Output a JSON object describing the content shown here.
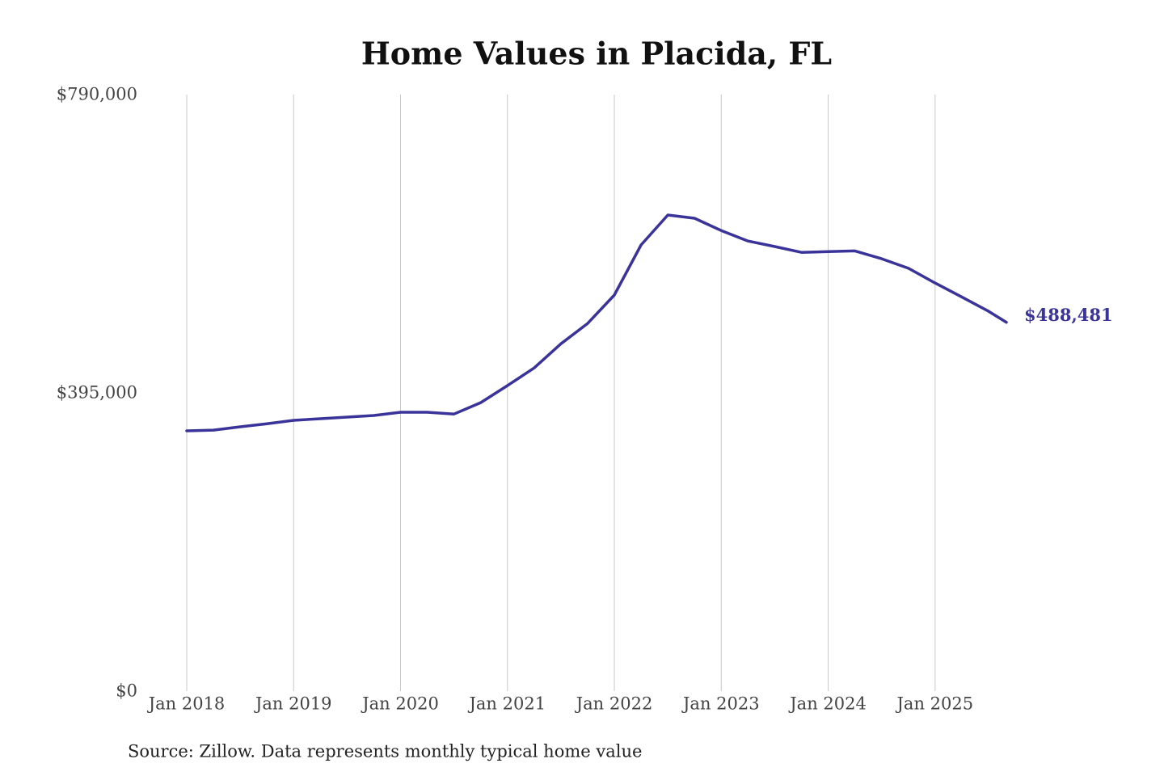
{
  "chart_data": {
    "type": "line",
    "title": "Home Values in Placida, FL",
    "source": "Source: Zillow. Data represents monthly typical home value",
    "x": [
      "2018-01",
      "2018-04",
      "2018-07",
      "2018-10",
      "2019-01",
      "2019-04",
      "2019-07",
      "2019-10",
      "2020-01",
      "2020-04",
      "2020-07",
      "2020-10",
      "2021-01",
      "2021-04",
      "2021-07",
      "2021-10",
      "2022-01",
      "2022-04",
      "2022-07",
      "2022-10",
      "2023-01",
      "2023-04",
      "2023-07",
      "2023-10",
      "2024-01",
      "2024-04",
      "2024-07",
      "2024-10",
      "2025-01",
      "2025-04",
      "2025-07",
      "2025-09"
    ],
    "series": [
      {
        "name": "Placida, FL",
        "color": "#3a3399",
        "values": [
          344700,
          345700,
          350000,
          354000,
          358600,
          360700,
          362900,
          365000,
          369300,
          369300,
          367000,
          382000,
          404600,
          428000,
          460000,
          487000,
          524500,
          590900,
          630500,
          626200,
          610000,
          596000,
          588700,
          581000,
          582000,
          583000,
          572600,
          560000,
          540500,
          522000,
          503000,
          488481
        ],
        "value_labels": [
          null,
          null,
          null,
          null,
          null,
          null,
          null,
          null,
          null,
          null,
          null,
          null,
          null,
          null,
          null,
          null,
          null,
          null,
          null,
          null,
          null,
          null,
          null,
          null,
          null,
          null,
          null,
          null,
          null,
          null,
          null,
          "$488,481"
        ]
      }
    ],
    "xlim": [
      "2018-01",
      "2025-09"
    ],
    "xticks": [
      {
        "value": "2018-01",
        "label": "Jan 2018"
      },
      {
        "value": "2019-01",
        "label": "Jan 2019"
      },
      {
        "value": "2020-01",
        "label": "Jan 2020"
      },
      {
        "value": "2021-01",
        "label": "Jan 2021"
      },
      {
        "value": "2022-01",
        "label": "Jan 2022"
      },
      {
        "value": "2023-01",
        "label": "Jan 2023"
      },
      {
        "value": "2024-01",
        "label": "Jan 2024"
      },
      {
        "value": "2025-01",
        "label": "Jan 2025"
      }
    ],
    "ylim": [
      0,
      790000
    ],
    "yticks": [
      {
        "value": 0,
        "label": "$0"
      },
      {
        "value": 395000,
        "label": "$395,000"
      },
      {
        "value": 790000,
        "label": "$790,000"
      }
    ],
    "grid": "x"
  }
}
